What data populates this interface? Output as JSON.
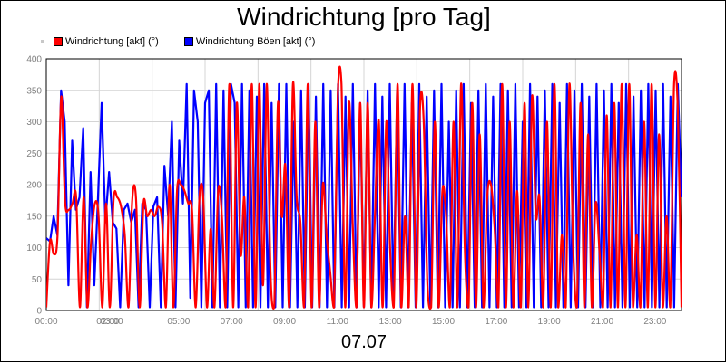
{
  "chart_data": {
    "type": "line",
    "title": "Windrichtung [pro Tag]",
    "xlabel": "07.07",
    "ylabel": "",
    "ylim": [
      0,
      400
    ],
    "yticks": [
      0,
      50,
      100,
      150,
      200,
      250,
      300,
      350,
      400
    ],
    "xlim": [
      0,
      24
    ],
    "xticks": [
      "00:00",
      "02:00",
      "03:00",
      "05:00",
      "07:00",
      "09:00",
      "11:00",
      "13:00",
      "15:00",
      "17:00",
      "19:00",
      "21:00",
      "23:00"
    ],
    "grid": true,
    "legend_placement": "top-left",
    "colors": {
      "series1": "#ff0000",
      "series2": "#0000ff"
    },
    "series": [
      {
        "name": "Windrichtung [akt] (°)",
        "values": [
          5,
          110,
          90,
          120,
          340,
          175,
          160,
          170,
          180,
          5,
          180,
          5,
          110,
          170,
          150,
          5,
          170,
          5,
          175,
          180,
          165,
          120,
          5,
          175,
          180,
          5,
          170,
          150,
          160,
          150,
          165,
          140,
          5,
          200,
          5,
          190,
          200,
          190,
          170,
          160,
          5,
          180,
          180,
          5,
          130,
          5,
          190,
          150,
          5,
          360,
          5,
          330,
          90,
          180,
          5,
          360,
          5,
          360,
          40,
          360,
          60,
          5,
          330,
          150,
          230,
          5,
          360,
          180,
          140,
          5,
          360,
          5,
          300,
          5,
          200,
          120,
          60,
          5,
          340,
          360,
          5,
          330,
          140,
          5,
          330,
          5,
          330,
          5,
          160,
          300,
          5,
          300,
          100,
          5,
          360,
          5,
          150,
          5,
          360,
          5,
          320,
          300,
          40,
          5,
          300,
          5,
          190,
          150,
          5,
          300,
          5,
          360,
          100,
          5,
          330,
          5,
          280,
          5,
          180,
          200,
          130,
          5,
          360,
          5,
          300,
          5,
          190,
          5,
          330,
          5,
          340,
          150,
          180,
          5,
          300,
          5,
          360,
          5,
          120,
          5,
          360,
          100,
          5,
          330,
          5,
          280,
          5,
          170,
          100,
          5,
          310,
          5,
          330,
          5,
          360,
          5,
          360,
          5,
          120,
          5,
          300,
          5,
          360,
          5,
          280,
          5,
          150,
          5,
          360,
          320,
          5
        ],
        "smooth": true
      },
      {
        "name": "Windrichtung Böen [akt] (°)",
        "values": [
          115,
          110,
          150,
          120,
          350,
          300,
          40,
          270,
          160,
          180,
          290,
          5,
          220,
          40,
          180,
          330,
          140,
          220,
          140,
          130,
          5,
          160,
          170,
          140,
          160,
          5,
          170,
          160,
          5,
          165,
          180,
          5,
          230,
          150,
          300,
          5,
          270,
          170,
          360,
          20,
          350,
          300,
          5,
          330,
          350,
          5,
          360,
          5,
          350,
          5,
          360,
          330,
          5,
          360,
          5,
          350,
          5,
          340,
          5,
          360,
          5,
          330,
          5,
          360,
          5,
          360,
          5,
          300,
          5,
          350,
          5,
          360,
          5,
          340,
          5,
          360,
          5,
          350,
          5,
          360,
          5,
          340,
          5,
          360,
          5,
          330,
          5,
          350,
          5,
          360,
          5,
          340,
          5,
          360,
          5,
          350,
          5,
          360,
          5,
          330,
          5,
          360,
          5,
          340,
          5,
          350,
          5,
          360,
          5,
          300,
          5,
          350,
          5,
          360,
          5,
          330,
          5,
          350,
          5,
          360,
          5,
          340,
          5,
          360,
          5,
          350,
          5,
          360,
          5,
          300,
          5,
          360,
          5,
          340,
          5,
          350,
          5,
          360,
          5,
          330,
          5,
          360,
          5,
          350,
          5,
          360,
          5,
          340,
          5,
          360,
          5,
          350,
          5,
          360,
          5,
          330,
          5,
          360,
          5,
          340,
          5,
          350,
          5,
          360,
          5,
          350,
          5,
          360,
          5,
          340,
          5,
          360,
          180
        ],
        "smooth": false
      }
    ]
  }
}
